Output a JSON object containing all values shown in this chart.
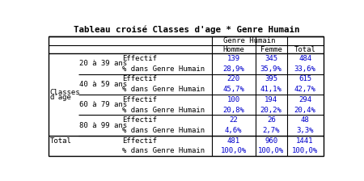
{
  "title": "Tableau croisé Classes d'age * Genre Humain",
  "col_header_1": "Genre Humain",
  "col_labels": [
    "Homme",
    "Femme",
    "Total"
  ],
  "row_groups": [
    {
      "group_label_1": "Classes",
      "group_label_2": "d'age",
      "rows": [
        {
          "sub_label": "20 à 39 ans",
          "row1_label": "Effectif",
          "row2_label": "% dans Genre Humain",
          "values1": [
            "139",
            "345",
            "484"
          ],
          "values2": [
            "28,9%",
            "35,9%",
            "33,6%"
          ]
        },
        {
          "sub_label": "40 à 59 ans",
          "row1_label": "Effectif",
          "row2_label": "% dans Genre Humain",
          "values1": [
            "220",
            "395",
            "615"
          ],
          "values2": [
            "45,7%",
            "41,1%",
            "42,7%"
          ]
        },
        {
          "sub_label": "60 à 79 ans",
          "row1_label": "Effectif",
          "row2_label": "% dans Genre Humain",
          "values1": [
            "100",
            "194",
            "294"
          ],
          "values2": [
            "20,8%",
            "20,2%",
            "20,4%"
          ]
        },
        {
          "sub_label": "80 à 99 ans",
          "row1_label": "Effectif",
          "row2_label": "% dans Genre Humain",
          "values1": [
            "22",
            "26",
            "48"
          ],
          "values2": [
            "4,6%",
            "2,7%",
            "3,3%"
          ]
        }
      ]
    }
  ],
  "total_row": {
    "label": "Total",
    "row1_label": "Effectif",
    "row2_label": "% dans Genre Humain",
    "values1": [
      "481",
      "960",
      "1441"
    ],
    "values2": [
      "100,0%",
      "100,0%",
      "100,0%"
    ]
  },
  "bg_color": "#ffffff",
  "border_color": "#000000",
  "value_color": "#0000cd",
  "label_color": "#000000",
  "font_size": 6.5,
  "title_font_size": 7.8
}
